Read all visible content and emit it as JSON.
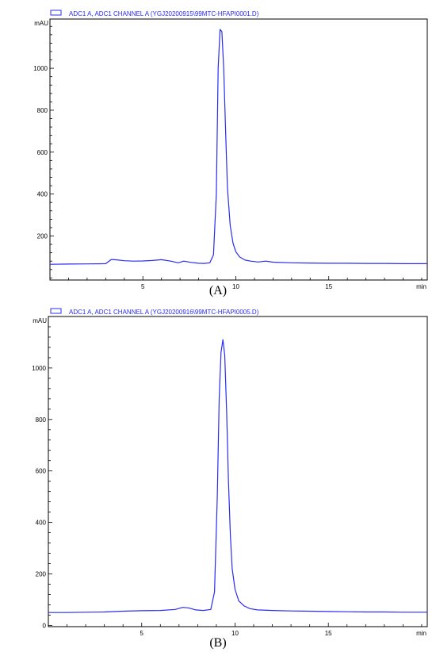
{
  "captions": [
    "(A)",
    "(B)"
  ],
  "colors": {
    "trace": "#2a2cf0",
    "frame": "#000000",
    "legend_text": "#2a2cf0"
  },
  "chart_data": [
    {
      "type": "line",
      "legend": "ADC1 A, ADC1 CHANNEL A (YGJ20200915\\99MTC-HFAPI0001.D)",
      "ylabel": "mAU",
      "xlabel": "min",
      "xlim": [
        0,
        20.3
      ],
      "ylim": [
        -10,
        1235
      ],
      "xticks": [
        5,
        10,
        15
      ],
      "yticks": [
        200,
        400,
        600,
        800,
        1000
      ],
      "legend_position": "top-left",
      "series": [
        {
          "x": [
            0,
            1,
            2,
            3.0,
            3.3,
            3.6,
            4.0,
            4.5,
            5.0,
            5.5,
            6.0,
            6.5,
            6.9,
            7.2,
            7.6,
            8.0,
            8.3,
            8.6,
            8.8,
            8.95,
            9.05,
            9.15,
            9.25,
            9.35,
            9.45,
            9.55,
            9.7,
            9.85,
            10.0,
            10.2,
            10.5,
            10.8,
            11.2,
            11.6,
            12.0,
            13,
            14,
            15,
            16,
            17,
            18,
            19,
            20.3
          ],
          "y": [
            65,
            66,
            67,
            68,
            88,
            86,
            82,
            80,
            81,
            83,
            87,
            80,
            72,
            80,
            74,
            70,
            69,
            72,
            110,
            400,
            1000,
            1185,
            1175,
            1000,
            700,
            430,
            250,
            165,
            125,
            100,
            85,
            80,
            76,
            80,
            75,
            72,
            71,
            70,
            70,
            69,
            69,
            68,
            68
          ]
        }
      ]
    },
    {
      "type": "line",
      "legend": "ADC1 A, ADC1 CHANNEL A (YGJ20200916\\99MTC-HFAPI0005.D)",
      "ylabel": "mAU",
      "xlabel": "min",
      "xlim": [
        0,
        20.3
      ],
      "ylim": [
        -5,
        1200
      ],
      "xticks": [
        5,
        10,
        15
      ],
      "yticks": [
        0,
        200,
        400,
        600,
        800,
        1000
      ],
      "legend_position": "top-left",
      "series": [
        {
          "x": [
            0,
            1,
            2,
            3,
            4,
            5,
            6,
            6.8,
            7.2,
            7.5,
            7.9,
            8.3,
            8.7,
            8.9,
            9.05,
            9.15,
            9.25,
            9.35,
            9.45,
            9.55,
            9.65,
            9.75,
            9.85,
            10.0,
            10.2,
            10.5,
            10.8,
            11.2,
            12,
            13,
            14,
            15,
            16,
            17,
            18,
            19,
            20.3
          ],
          "y": [
            50,
            50,
            51,
            52,
            55,
            57,
            58,
            62,
            70,
            68,
            60,
            58,
            62,
            130,
            500,
            880,
            1060,
            1110,
            1050,
            830,
            560,
            350,
            220,
            140,
            95,
            75,
            65,
            60,
            58,
            56,
            55,
            54,
            53,
            52,
            52,
            51,
            51
          ]
        }
      ]
    }
  ]
}
